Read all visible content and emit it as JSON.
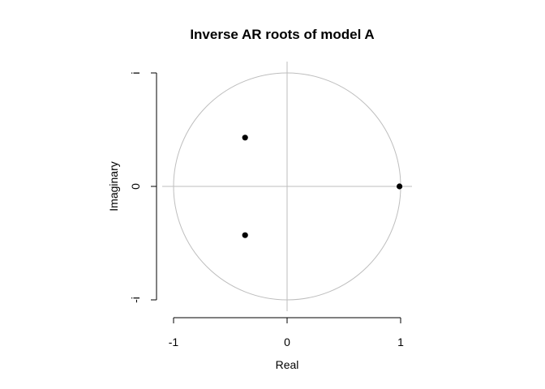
{
  "chart_data": {
    "type": "scatter",
    "title": "Inverse AR roots of model A",
    "xlabel": "Real",
    "ylabel": "Imaginary",
    "xlim": [
      -1,
      1
    ],
    "ylim": [
      -1,
      1
    ],
    "x_ticks": [
      {
        "value": -1,
        "label": "-1"
      },
      {
        "value": 0,
        "label": "0"
      },
      {
        "value": 1,
        "label": "1"
      }
    ],
    "y_ticks": [
      {
        "value": -1,
        "label": "-i"
      },
      {
        "value": 0,
        "label": "0"
      },
      {
        "value": 1,
        "label": "i"
      }
    ],
    "unit_circle": true,
    "reference_lines": {
      "x": 0,
      "y": 0
    },
    "points": [
      {
        "x": -0.37,
        "y": 0.43
      },
      {
        "x": -0.37,
        "y": -0.43
      },
      {
        "x": 0.99,
        "y": 0.0
      }
    ],
    "colors": {
      "points": "#000000",
      "circle": "#bebebe",
      "reference_lines": "#bebebe",
      "axes": "#000000"
    }
  }
}
